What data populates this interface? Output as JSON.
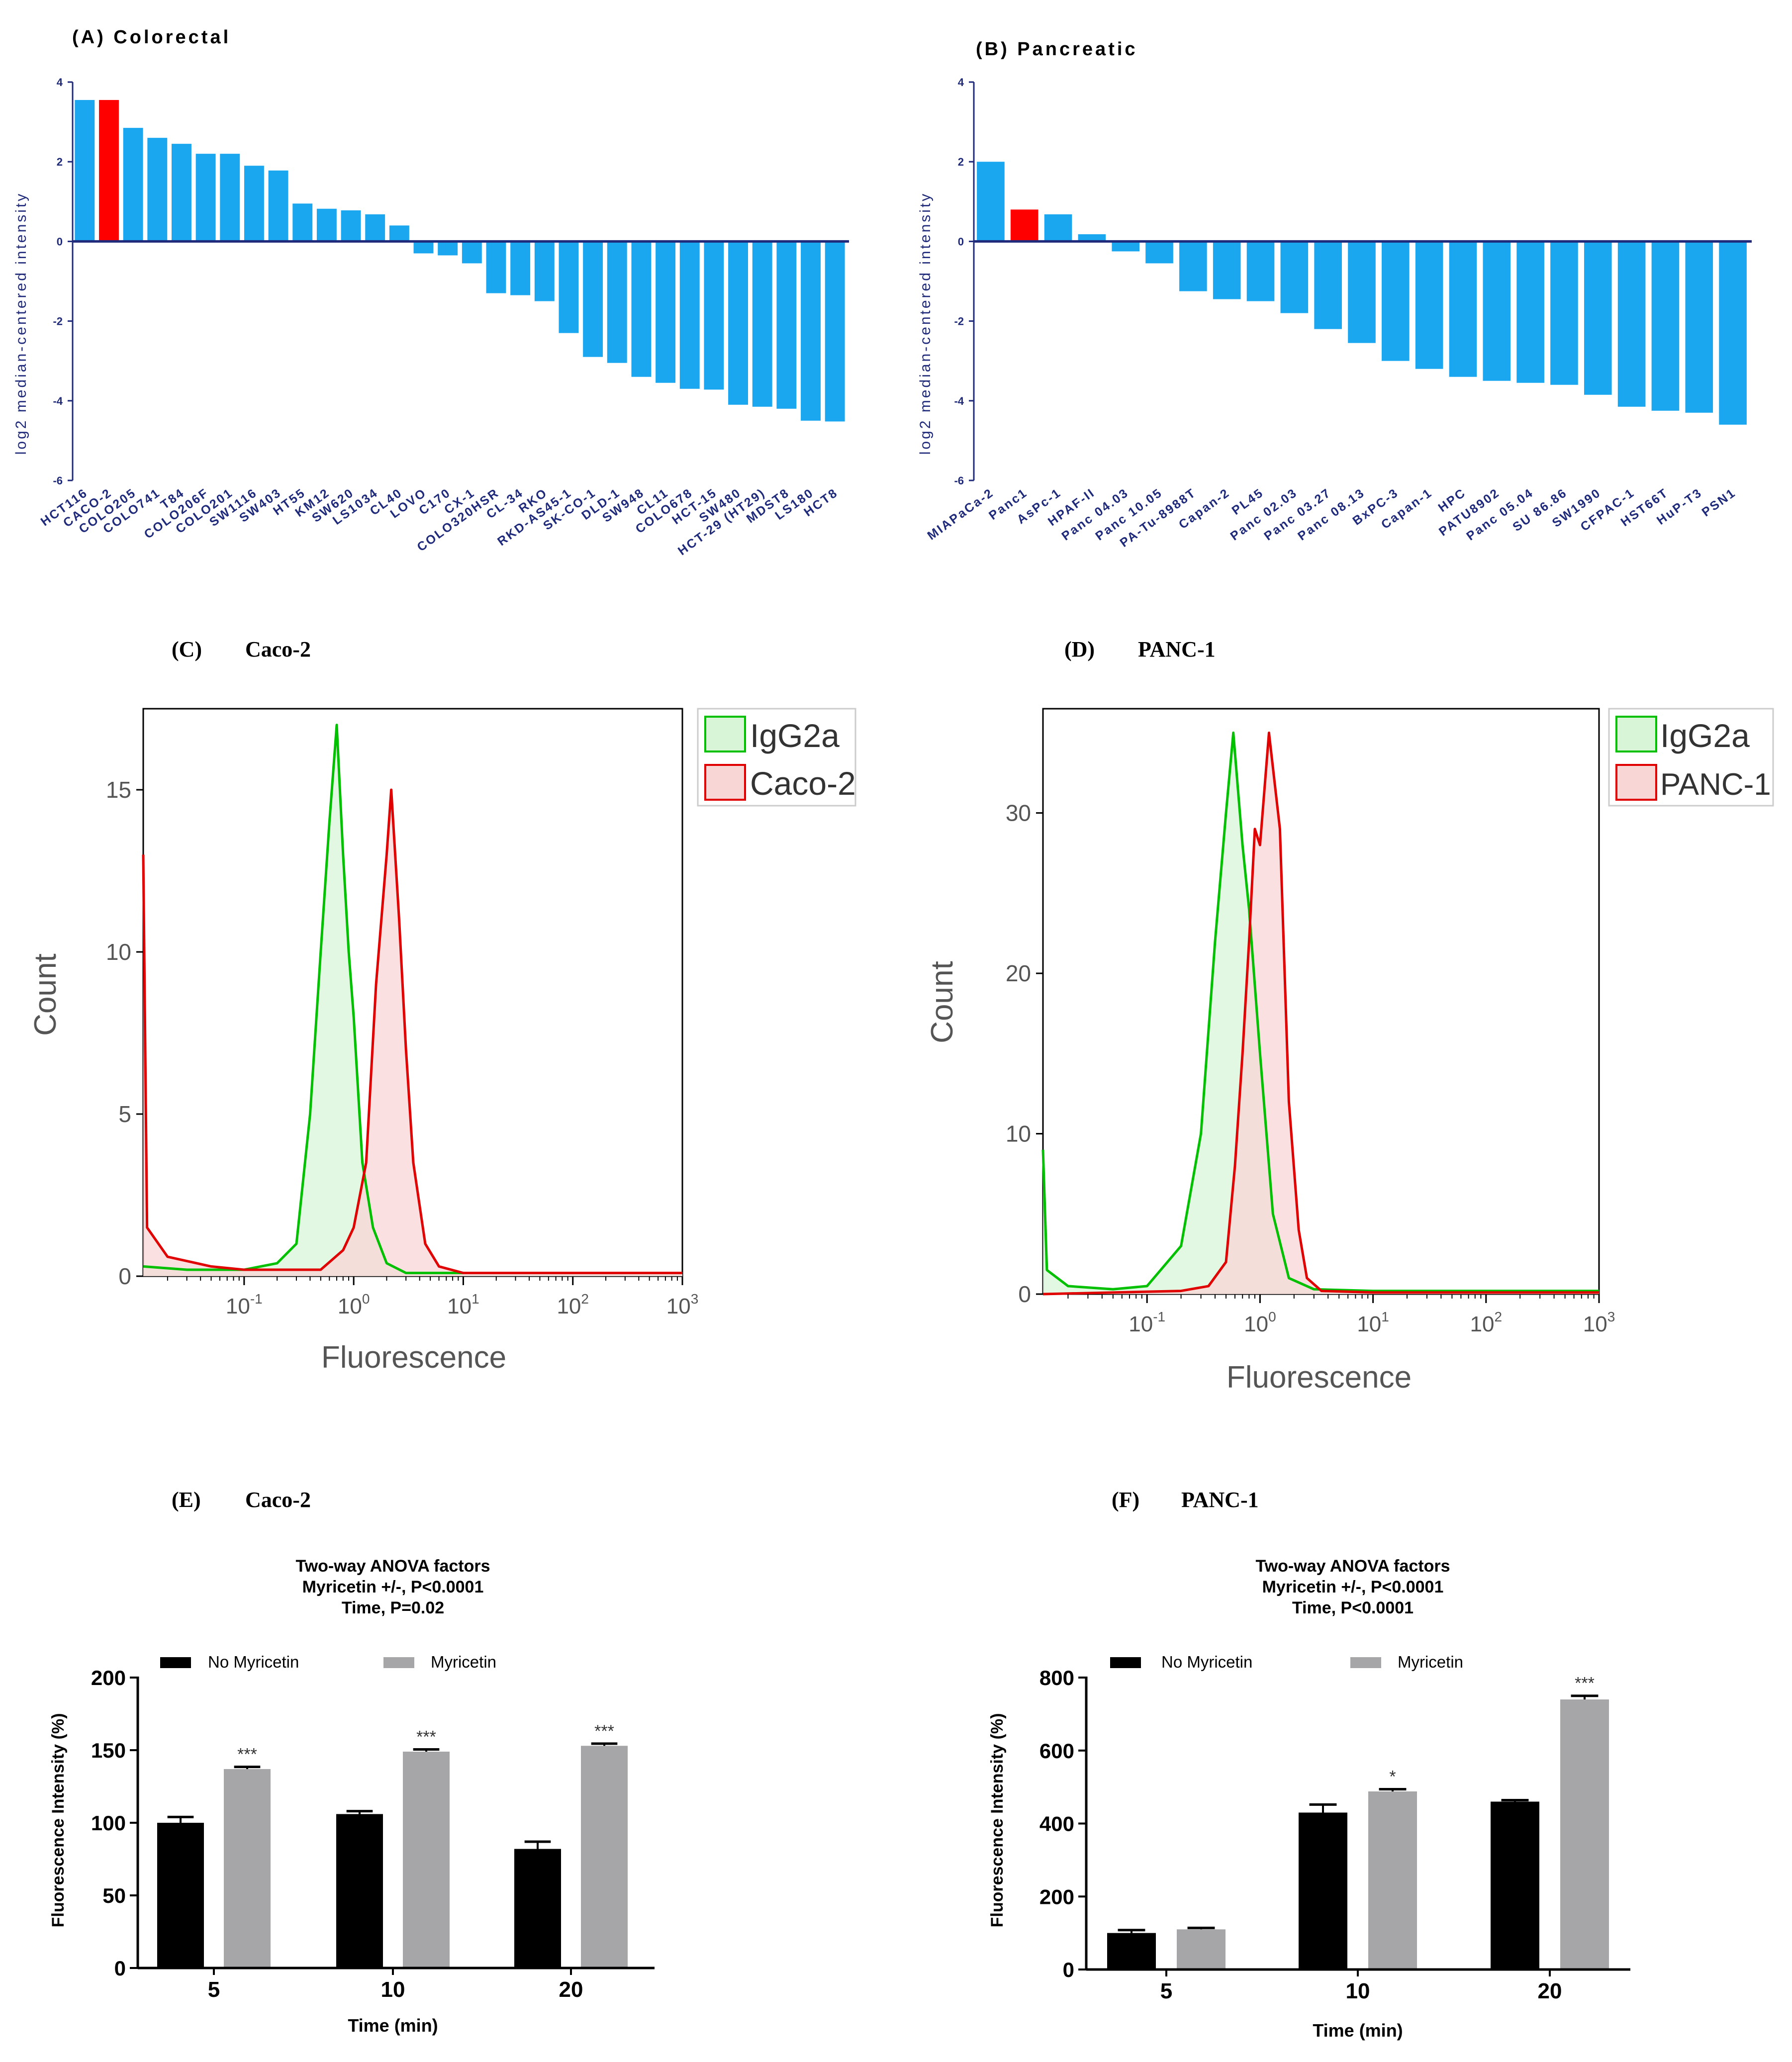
{
  "colors": {
    "bar_blue": "#1aa7f0",
    "bar_red": "#ff0000",
    "axis_navy": "#1f2a7a",
    "hist_green": "#00c000",
    "hist_green_fill": "#d8f5d8",
    "hist_red": "#e00000",
    "hist_red_fill": "#f8d6d6",
    "black_bar": "#000000",
    "grey_bar": "#a6a6a8"
  },
  "chart_data": [
    {
      "id": "A",
      "type": "bar",
      "title": "(A) Colorectal",
      "ylabel": "log2 median-centered intensity",
      "ylim": [
        -6,
        4
      ],
      "yticks": [
        "4",
        "2",
        "0",
        "-2",
        "-4",
        "-6"
      ],
      "highlight": "CACO-2",
      "categories": [
        "HCT116",
        "CACO-2",
        "COLO205",
        "COLO741",
        "T84",
        "COLO206F",
        "COLO201",
        "SW1116",
        "SW403",
        "HT55",
        "KM12",
        "SW620",
        "LS1034",
        "CL40",
        "LOVO",
        "C170",
        "CX-1",
        "COLO320HSR",
        "CL-34",
        "RKO",
        "RKD-AS45-1",
        "SK-CO-1",
        "DLD-1",
        "SW948",
        "CL11",
        "COLO678",
        "HCT-15",
        "SW480",
        "HCT-29 (HT29)",
        "MDST8",
        "LS180",
        "HCT8"
      ],
      "values": [
        3.55,
        3.55,
        2.85,
        2.6,
        2.45,
        2.2,
        2.2,
        1.9,
        1.78,
        0.95,
        0.82,
        0.78,
        0.68,
        0.4,
        -0.3,
        -0.35,
        -0.55,
        -1.3,
        -1.35,
        -1.5,
        -2.3,
        -2.9,
        -3.05,
        -3.4,
        -3.55,
        -3.7,
        -3.72,
        -4.1,
        -4.15,
        -4.2,
        -4.5,
        -4.52
      ]
    },
    {
      "id": "B",
      "type": "bar",
      "title": "(B) Pancreatic",
      "ylabel": "log2 median-centered intensity",
      "ylim": [
        -6,
        4
      ],
      "yticks": [
        "4",
        "2",
        "0",
        "-2",
        "-4",
        "-6"
      ],
      "highlight": "Panc1",
      "categories": [
        "MIAPaCa-2",
        "Panc1",
        "AsPc-1",
        "HPAF-II",
        "Panc 04.03",
        "Panc 10.05",
        "PA-Tu-8988T",
        "Capan-2",
        "PL45",
        "Panc 02.03",
        "Panc 03.27",
        "Panc 08.13",
        "BxPC-3",
        "Capan-1",
        "HPC",
        "PATU8902",
        "Panc 05.04",
        "SU 86.86",
        "SW1990",
        "CFPAC-1",
        "HST66T",
        "HuP-T3",
        "PSN1"
      ],
      "values": [
        2.0,
        0.8,
        0.68,
        0.18,
        -0.25,
        -0.55,
        -1.25,
        -1.45,
        -1.5,
        -1.8,
        -2.2,
        -2.55,
        -3.0,
        -3.2,
        -3.4,
        -3.5,
        -3.55,
        -3.6,
        -3.85,
        -4.15,
        -4.25,
        -4.3,
        -4.6
      ]
    },
    {
      "id": "C",
      "type": "histogram",
      "panel_label": "(C)",
      "title": "Caco-2",
      "xlabel": "Fluorescence",
      "ylabel": "Count",
      "xscale": "log",
      "xlim": [
        0.012,
        1000
      ],
      "ylim": [
        0,
        17.5
      ],
      "yticks": [
        0,
        5,
        10,
        15
      ],
      "xticks": [
        {
          "base": "10",
          "exp": "-1",
          "value": 0.1
        },
        {
          "base": "10",
          "exp": "0",
          "value": 1
        },
        {
          "base": "10",
          "exp": "1",
          "value": 10
        },
        {
          "base": "10",
          "exp": "2",
          "value": 100
        },
        {
          "base": "10",
          "exp": "3",
          "value": 1000
        }
      ],
      "legend_position": "top-right",
      "series": [
        {
          "name": "IgG2a",
          "peak_at": 0.7,
          "peak_count": 17,
          "x": [
            0.012,
            0.03,
            0.1,
            0.2,
            0.3,
            0.4,
            0.5,
            0.6,
            0.7,
            0.8,
            0.9,
            1.0,
            1.2,
            1.5,
            2.0,
            3.0,
            10.0,
            1000.0
          ],
          "y": [
            0.3,
            0.2,
            0.2,
            0.4,
            1.0,
            5.0,
            10.0,
            14.0,
            17.0,
            13.0,
            10.0,
            8.0,
            3.5,
            1.5,
            0.4,
            0.1,
            0.1,
            0.1
          ]
        },
        {
          "name": "Caco-2",
          "peak_at": 2.2,
          "peak_count": 15,
          "x": [
            0.012,
            0.013,
            0.02,
            0.05,
            0.1,
            0.5,
            0.8,
            1.0,
            1.3,
            1.6,
            2.0,
            2.2,
            2.6,
            3.0,
            3.5,
            4.5,
            6.0,
            10.0,
            1000.0
          ],
          "y": [
            13.0,
            1.5,
            0.6,
            0.3,
            0.2,
            0.2,
            0.8,
            1.5,
            3.5,
            9.0,
            13.0,
            15.0,
            11.0,
            7.0,
            3.5,
            1.0,
            0.3,
            0.1,
            0.1
          ]
        }
      ]
    },
    {
      "id": "D",
      "type": "histogram",
      "panel_label": "(D)",
      "title": "PANC-1",
      "xlabel": "Fluorescence",
      "ylabel": "Count",
      "xscale": "log",
      "xlim": [
        0.012,
        1000
      ],
      "ylim": [
        0,
        36.5
      ],
      "yticks": [
        0,
        10,
        20,
        30
      ],
      "xticks": [
        {
          "base": "10",
          "exp": "-1",
          "value": 0.1
        },
        {
          "base": "10",
          "exp": "0",
          "value": 1
        },
        {
          "base": "10",
          "exp": "1",
          "value": 10
        },
        {
          "base": "10",
          "exp": "2",
          "value": 100
        },
        {
          "base": "10",
          "exp": "3",
          "value": 1000
        }
      ],
      "legend_position": "top-right",
      "series": [
        {
          "name": "IgG2a",
          "peak_at": 0.58,
          "peak_count": 35,
          "x": [
            0.012,
            0.013,
            0.02,
            0.05,
            0.1,
            0.2,
            0.3,
            0.4,
            0.5,
            0.58,
            0.7,
            0.8,
            1.0,
            1.3,
            1.8,
            3.0,
            10.0,
            1000.0
          ],
          "y": [
            9.0,
            1.5,
            0.5,
            0.3,
            0.5,
            3.0,
            10.0,
            22.0,
            30.0,
            35.0,
            28.0,
            24.0,
            15.0,
            5.0,
            1.0,
            0.3,
            0.2,
            0.2
          ]
        },
        {
          "name": "PANC-1",
          "peak_at": 1.2,
          "peak_count": 35,
          "x": [
            0.012,
            0.2,
            0.35,
            0.5,
            0.6,
            0.7,
            0.8,
            0.9,
            1.0,
            1.2,
            1.5,
            1.8,
            2.2,
            2.6,
            3.5,
            10.0,
            1000.0
          ],
          "y": [
            0.0,
            0.2,
            0.5,
            2.0,
            8.0,
            15.0,
            22.0,
            29.0,
            28.0,
            35.0,
            29.0,
            12.0,
            4.0,
            1.0,
            0.2,
            0.1,
            0.1
          ]
        }
      ]
    },
    {
      "id": "E",
      "type": "bar",
      "panel_label": "(E)",
      "title": "Caco-2",
      "stats_text": [
        "Two-way  ANOVA factors",
        "Myricetin +/-, P<0.0001",
        "Time, P=0.02"
      ],
      "xlabel": "Time (min)",
      "ylabel": "Fluorescence Intensity (%)",
      "ylim": [
        0,
        200
      ],
      "yticks": [
        0,
        50,
        100,
        150,
        200
      ],
      "categories": [
        "5",
        "10",
        "20"
      ],
      "series": [
        {
          "name": "No Myricetin",
          "color": "#000000",
          "values": [
            100,
            106,
            82
          ],
          "errors": [
            4,
            2,
            5
          ],
          "annotations": [
            "",
            "",
            ""
          ]
        },
        {
          "name": "Myricetin",
          "color": "#a6a6a8",
          "values": [
            137,
            149,
            153
          ],
          "errors": [
            1.5,
            1.5,
            1.5
          ],
          "annotations": [
            "***",
            "***",
            "***"
          ]
        }
      ]
    },
    {
      "id": "F",
      "type": "bar",
      "panel_label": "(F)",
      "title": "PANC-1",
      "stats_text": [
        "Two-way  ANOVA factors",
        "Myricetin +/-, P<0.0001",
        "Time, P<0.0001"
      ],
      "xlabel": "Time (min)",
      "ylabel": "Fluorescence Intensity (%)",
      "ylim": [
        0,
        800
      ],
      "yticks": [
        0,
        200,
        400,
        600,
        800
      ],
      "categories": [
        "5",
        "10",
        "20"
      ],
      "series": [
        {
          "name": "No Myricetin",
          "color": "#000000",
          "values": [
            100,
            430,
            460
          ],
          "errors": [
            8,
            22,
            4
          ],
          "annotations": [
            "",
            "",
            ""
          ]
        },
        {
          "name": "Myricetin",
          "color": "#a6a6a8",
          "values": [
            110,
            488,
            740
          ],
          "errors": [
            4,
            6,
            10
          ],
          "annotations": [
            "",
            "*",
            "***"
          ]
        }
      ]
    }
  ]
}
